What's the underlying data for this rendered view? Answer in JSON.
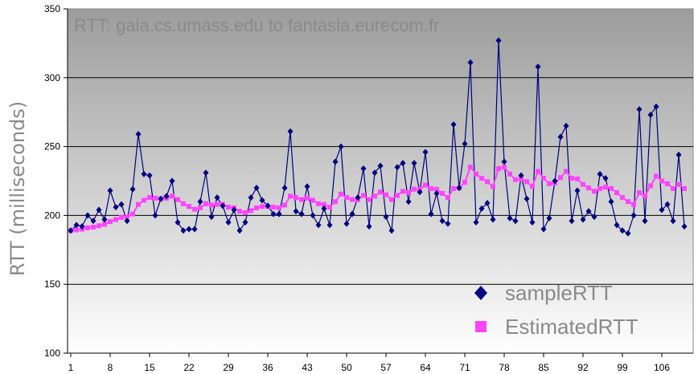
{
  "chart_data": {
    "type": "line",
    "title": "RTT: gaia.cs.umass.edu to fantasia.eurecom.fr",
    "ylabel": "RTT (milliseconds)",
    "xlabel": "",
    "ylim": [
      100,
      350
    ],
    "yticks": [
      100,
      150,
      200,
      250,
      300,
      350
    ],
    "xlim": [
      1,
      111
    ],
    "xticks": [
      1,
      8,
      15,
      22,
      29,
      36,
      43,
      50,
      57,
      64,
      71,
      78,
      85,
      92,
      99,
      106
    ],
    "grid": true,
    "legend_position": "bottom-right",
    "series": [
      {
        "name": "sampleRTT",
        "color": "#000080",
        "marker": "diamond",
        "values": [
          189,
          193,
          192,
          200,
          196,
          204,
          197,
          218,
          206,
          208,
          196,
          219,
          259,
          230,
          229,
          200,
          212,
          214,
          225,
          195,
          189,
          190,
          190,
          210,
          231,
          199,
          213,
          207,
          195,
          204,
          189,
          195,
          213,
          220,
          211,
          207,
          201,
          201,
          220,
          261,
          203,
          201,
          221,
          200,
          193,
          205,
          193,
          239,
          250,
          194,
          201,
          213,
          234,
          192,
          231,
          236,
          199,
          189,
          235,
          238,
          210,
          238,
          217,
          246,
          201,
          216,
          196,
          194,
          266,
          220,
          252,
          311,
          195,
          205,
          209,
          197,
          327,
          239,
          198,
          196,
          229,
          212,
          195,
          308,
          190,
          198,
          225,
          257,
          265,
          196,
          218,
          197,
          203,
          199,
          230,
          227,
          210,
          193,
          189,
          187,
          200,
          277,
          196,
          273,
          279,
          204,
          208,
          196,
          244,
          192
        ]
      },
      {
        "name": "EstimatedRTT",
        "color": "#ff44ff",
        "marker": "square",
        "values": [
          189,
          189.5,
          190,
          191,
          191.5,
          192.5,
          193.5,
          195.5,
          197,
          198.5,
          199,
          201,
          208,
          211,
          213,
          212.5,
          212,
          212.5,
          214,
          211.5,
          208.5,
          206.5,
          204.5,
          205.5,
          208.5,
          207.5,
          208,
          208,
          206,
          205.5,
          203,
          202,
          203.5,
          205.5,
          206.5,
          206.5,
          206,
          205.5,
          207.5,
          214,
          213,
          211.5,
          212.5,
          211,
          208.5,
          208,
          206,
          210,
          215.5,
          213,
          211.5,
          211.5,
          214.5,
          211.5,
          214,
          217,
          215,
          211.5,
          214.5,
          217.5,
          216.5,
          219,
          219,
          222,
          219.5,
          219,
          216,
          213,
          219.5,
          220,
          224,
          235,
          230,
          227,
          224.5,
          221,
          234,
          235,
          230,
          226,
          226.5,
          224.5,
          221,
          232,
          227,
          223,
          223.5,
          227.5,
          232,
          227,
          226.5,
          222.5,
          220,
          217.5,
          219.5,
          220.5,
          219.5,
          216.5,
          213,
          210,
          208,
          216.5,
          214,
          221.5,
          228.5,
          225,
          223,
          219.5,
          222.5,
          219.5
        ]
      }
    ]
  }
}
